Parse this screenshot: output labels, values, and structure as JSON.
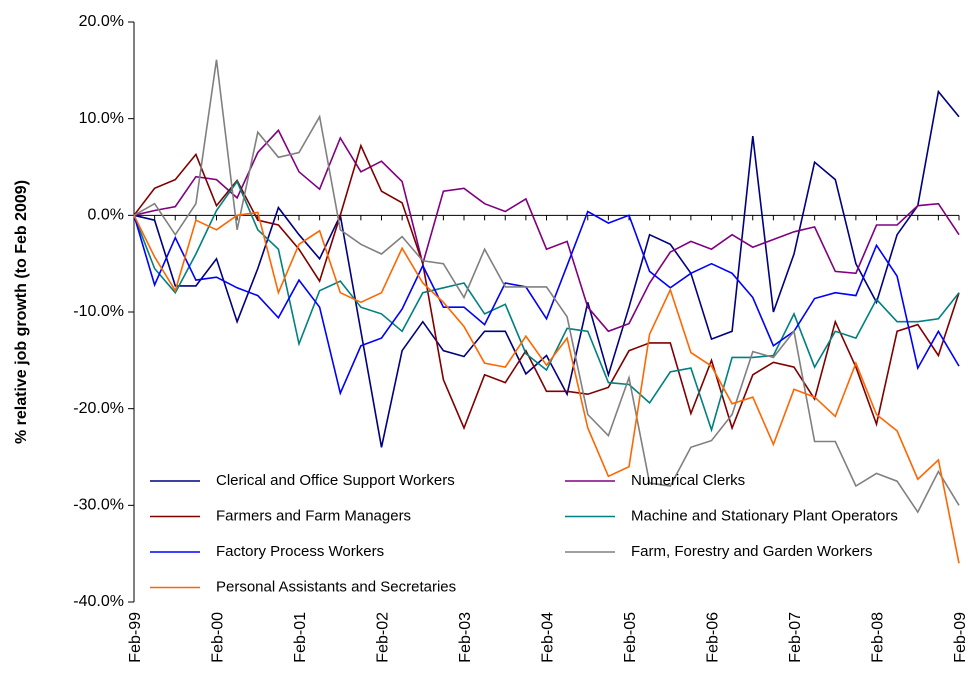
{
  "chart_data": {
    "type": "line",
    "y_label": "% relative job growth (to Feb 2009)",
    "categories": [
      "Feb-99",
      null,
      null,
      null,
      "Feb-00",
      null,
      null,
      null,
      "Feb-01",
      null,
      null,
      null,
      "Feb-02",
      null,
      null,
      null,
      "Feb-03",
      null,
      null,
      null,
      "Feb-04",
      null,
      null,
      null,
      "Feb-05",
      null,
      null,
      null,
      "Feb-06",
      null,
      null,
      null,
      "Feb-07",
      null,
      null,
      null,
      "Feb-08",
      null,
      null,
      null,
      "Feb-09"
    ],
    "ylim": [
      -40,
      20
    ],
    "yticks": [
      {
        "value": -40,
        "label": "-40.0%"
      },
      {
        "value": -30,
        "label": "-30.0%"
      },
      {
        "value": -20,
        "label": "-20.0%"
      },
      {
        "value": -10,
        "label": "-10.0%"
      },
      {
        "value": 0,
        "label": "0.0%"
      },
      {
        "value": 10,
        "label": "10.0%"
      },
      {
        "value": 20,
        "label": "20.0%"
      }
    ],
    "series": [
      {
        "name": "Clerical and Office Support Workers",
        "color": "#000080",
        "values": [
          0,
          -0.5,
          -7.3,
          -7.3,
          -4.5,
          -11,
          -5.5,
          0.8,
          -2,
          -4.5,
          0,
          -12,
          -24,
          -14,
          -11,
          -14,
          -14.6,
          -12,
          -12,
          -16.4,
          -14.5,
          -18.5,
          -9,
          -16.5,
          -9.5,
          -2,
          -3,
          -6,
          -12.8,
          -12,
          8.2,
          -10,
          -4,
          5.5,
          3.7,
          -5,
          -9,
          -2,
          1,
          12.8,
          10.2
        ]
      },
      {
        "name": "Numerical Clerks",
        "color": "#800080",
        "values": [
          0,
          0.5,
          0.9,
          4,
          3.7,
          1.8,
          6.5,
          8.8,
          4.5,
          2.7,
          8,
          4.5,
          5.6,
          3.5,
          -5,
          2.5,
          2.8,
          1.2,
          0.4,
          1.7,
          -3.5,
          -2.7,
          -9.5,
          -12,
          -11.2,
          -7,
          -3.8,
          -2.7,
          -3.5,
          -2,
          -3.3,
          -2.5,
          -1.7,
          -1.2,
          -5.8,
          -6,
          -1,
          -1,
          1,
          1.2,
          -2
        ]
      },
      {
        "name": "Farmers and Farm Managers",
        "color": "#800000",
        "values": [
          0,
          2.8,
          3.7,
          6.3,
          1,
          3.6,
          -0.5,
          -1,
          -3.5,
          -6.8,
          0,
          7.2,
          2.5,
          1.3,
          -5,
          -17,
          -22,
          -16.5,
          -17.3,
          -14,
          -18.2,
          -18.2,
          -18.5,
          -17.8,
          -14,
          -13.2,
          -13.2,
          -20.5,
          -15,
          -22,
          -16.5,
          -15.2,
          -15.7,
          -19,
          -11,
          -15.7,
          -21.6,
          -12,
          -11.3,
          -14.5,
          -8
        ]
      },
      {
        "name": "Machine and Stationary Plant Operators",
        "color": "#008080",
        "values": [
          0,
          -5.5,
          -8,
          -4,
          0.5,
          3.5,
          -1.5,
          -3.5,
          -13.3,
          -7.8,
          -6.8,
          -9.5,
          -10.2,
          -12,
          -8,
          -7.5,
          -7,
          -10.2,
          -9.2,
          -14.3,
          -16,
          -11.7,
          -12,
          -17.3,
          -17.5,
          -19.4,
          -16.2,
          -15.8,
          -22.2,
          -14.7,
          -14.7,
          -14.5,
          -10.2,
          -15.7,
          -12,
          -12.7,
          -8.7,
          -11,
          -11,
          -10.7,
          -8
        ]
      },
      {
        "name": "Factory Process Workers",
        "color": "#0000ff",
        "values": [
          0,
          -7.2,
          -2.3,
          -6.7,
          -6.4,
          -7.5,
          -8.3,
          -10.6,
          -6.7,
          -9.5,
          -18.4,
          -13.5,
          -12.7,
          -9.7,
          -5.2,
          -9.5,
          -9.5,
          -11.3,
          -7,
          -7.4,
          -10.7,
          -5.2,
          0.4,
          -0.8,
          0,
          -5.8,
          -7.5,
          -6,
          -5,
          -6,
          -8.5,
          -13.5,
          -12,
          -8.6,
          -8,
          -8.3,
          -3.1,
          -6.3,
          -15.8,
          -12,
          -15.6
        ]
      },
      {
        "name": "Farm, Forestry and Garden Workers",
        "color": "#808080",
        "values": [
          0,
          1.2,
          -2,
          1.2,
          16.1,
          -1.5,
          8.6,
          6,
          6.5,
          10.2,
          -1.5,
          -3,
          -4,
          -2.2,
          -4.7,
          -5,
          -8.5,
          -3.5,
          -7.4,
          -7.4,
          -7.4,
          -10.5,
          -20.6,
          -22.8,
          -16.8,
          -27.7,
          -28,
          -24,
          -23.3,
          -20.6,
          -14.1,
          -14.7,
          -12,
          -23.4,
          -23.4,
          -28,
          -26.7,
          -27.5,
          -30.7,
          -26.5,
          -30
        ]
      },
      {
        "name": "Personal Assistants and Secretaries",
        "color": "#ff6600",
        "values": [
          0,
          -4.3,
          -7.8,
          -0.5,
          -1.5,
          0,
          0.3,
          -8,
          -3,
          -1.6,
          -8,
          -9,
          -8,
          -3.4,
          -7,
          -9,
          -11.5,
          -15.3,
          -15.7,
          -12.5,
          -15.5,
          -12.7,
          -22,
          -27,
          -26,
          -12.3,
          -7.7,
          -14.2,
          -15.6,
          -19.5,
          -18.8,
          -23.7,
          -18,
          -18.8,
          -20.8,
          -15.3,
          -20.6,
          -22.3,
          -27.3,
          -25.3,
          -36
        ]
      }
    ]
  }
}
